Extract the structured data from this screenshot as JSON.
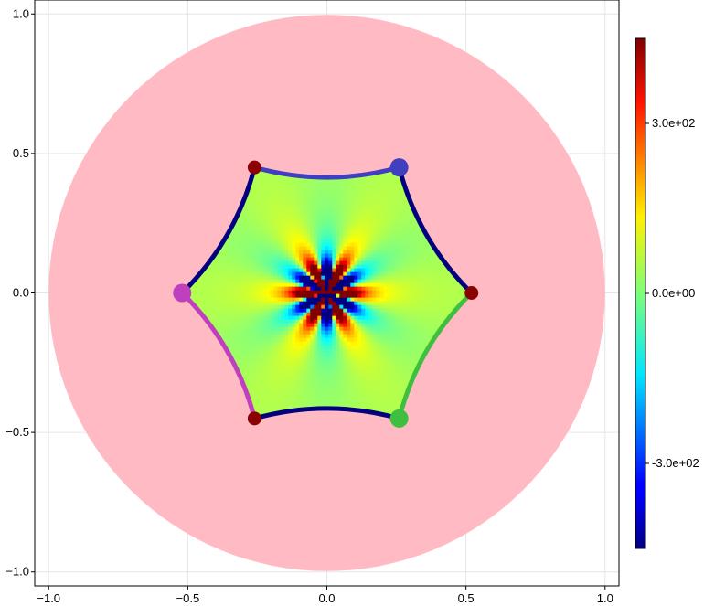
{
  "chart_data": {
    "type": "heatmap",
    "title": "",
    "xlabel": "",
    "ylabel": "",
    "xlim": [
      -1.05,
      1.05
    ],
    "ylim": [
      -1.05,
      1.05
    ],
    "grid": true,
    "x_ticks": [
      -1.0,
      -0.5,
      0.0,
      0.5,
      1.0
    ],
    "x_tick_labels": [
      "−1.0",
      "−0.5",
      "0.0",
      "0.5",
      "1.0"
    ],
    "y_ticks": [
      -1.0,
      -0.5,
      0.0,
      0.5,
      1.0
    ],
    "y_tick_labels": [
      "−1.0",
      "−0.5",
      "0.0",
      "0.5",
      "1.0"
    ],
    "disk": {
      "center": [
        0,
        0
      ],
      "radius": 1.0,
      "color": "#ffb6c1"
    },
    "field_min_value": 0.0,
    "field_amplitude": 1.0,
    "colorbar": {
      "colormap": "jet",
      "limits": [
        -450,
        450
      ],
      "ticks": [
        -300,
        0,
        300
      ],
      "tick_labels": [
        "-3.0e+02",
        "0.0e+00",
        "3.0e+02"
      ]
    },
    "hexagon": {
      "radius": 0.52,
      "vertices": [
        [
          0.52,
          0.0
        ],
        [
          0.26,
          0.45
        ],
        [
          -0.26,
          0.45
        ],
        [
          -0.52,
          0.0
        ],
        [
          -0.26,
          -0.45
        ],
        [
          0.26,
          -0.45
        ]
      ],
      "edges": [
        {
          "from": 0,
          "to": 1,
          "color": "#000080"
        },
        {
          "from": 1,
          "to": 2,
          "color": "#3f3fbf"
        },
        {
          "from": 2,
          "to": 3,
          "color": "#000080"
        },
        {
          "from": 3,
          "to": 4,
          "color": "#bf3fbf"
        },
        {
          "from": 4,
          "to": 5,
          "color": "#000080"
        },
        {
          "from": 5,
          "to": 0,
          "color": "#3fbf3f"
        }
      ],
      "prevertices": [
        {
          "vertex": 0,
          "color": "#8b0000",
          "size": "small"
        },
        {
          "vertex": 1,
          "color": "#3f3fbf",
          "size": "large"
        },
        {
          "vertex": 2,
          "color": "#8b0000",
          "size": "small"
        },
        {
          "vertex": 3,
          "color": "#bf3fbf",
          "size": "large"
        },
        {
          "vertex": 4,
          "color": "#8b0000",
          "size": "small"
        },
        {
          "vertex": 5,
          "color": "#3fbf3f",
          "size": "large"
        }
      ]
    }
  }
}
